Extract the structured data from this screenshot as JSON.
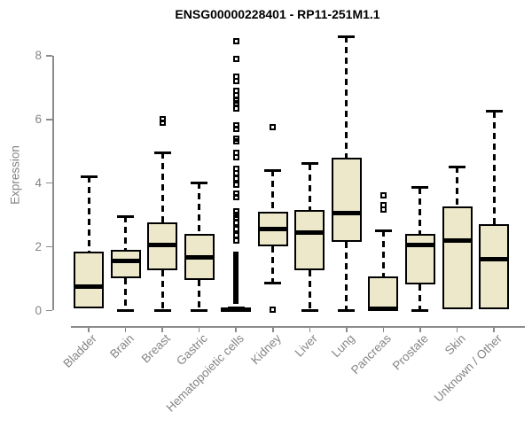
{
  "chart_data": {
    "type": "boxplot",
    "title": "ENSG00000228401 - RP11-251M1.1",
    "ylabel": "Expression",
    "ylim": [
      0,
      8.7
    ],
    "yticks": [
      0,
      2,
      4,
      6,
      8
    ],
    "grid": false,
    "legend": null,
    "categories": [
      "Bladder",
      "Brain",
      "Breast",
      "Gastric",
      "Hematopoietic cells",
      "Kidney",
      "Liver",
      "Lung",
      "Pancreas",
      "Prostate",
      "Skin",
      "Unknown / Other"
    ],
    "series": [
      {
        "category": "Bladder",
        "whisker_low": 0,
        "q1": 0.05,
        "median": 0.75,
        "q3": 1.85,
        "whisker_high": 4.2,
        "outliers": []
      },
      {
        "category": "Brain",
        "whisker_low": 0,
        "q1": 1.0,
        "median": 1.55,
        "q3": 1.9,
        "whisker_high": 2.95,
        "outliers": []
      },
      {
        "category": "Breast",
        "whisker_low": 0,
        "q1": 1.25,
        "median": 2.05,
        "q3": 2.75,
        "whisker_high": 4.95,
        "outliers": [
          5.9,
          6.0
        ]
      },
      {
        "category": "Gastric",
        "whisker_low": 0,
        "q1": 0.95,
        "median": 1.65,
        "q3": 2.4,
        "whisker_high": 4.0,
        "outliers": []
      },
      {
        "category": "Hematopoietic cells",
        "whisker_low": 0,
        "q1": 0,
        "median": 0.02,
        "q3": 0.05,
        "whisker_high": 0.08,
        "outliers": [
          8.45,
          7.9,
          7.35,
          7.2,
          6.9,
          6.75,
          6.6,
          6.5,
          6.35,
          5.8,
          5.7,
          5.4,
          5.3,
          4.95,
          4.8,
          4.45,
          4.3,
          4.15,
          3.95,
          3.65,
          3.55,
          3.1,
          3.0,
          2.9,
          2.75,
          2.55,
          2.35,
          2.2
        ],
        "outlier_band": [
          0.2,
          1.85
        ]
      },
      {
        "category": "Kidney",
        "whisker_low": 0.85,
        "q1": 2.0,
        "median": 2.55,
        "q3": 3.1,
        "whisker_high": 4.4,
        "outliers": [
          5.75,
          0.02
        ]
      },
      {
        "category": "Liver",
        "whisker_low": 0,
        "q1": 1.25,
        "median": 2.45,
        "q3": 3.15,
        "whisker_high": 4.6,
        "outliers": []
      },
      {
        "category": "Lung",
        "whisker_low": 0,
        "q1": 2.15,
        "median": 3.05,
        "q3": 4.8,
        "whisker_high": 8.6,
        "outliers": []
      },
      {
        "category": "Pancreas",
        "whisker_low": 0,
        "q1": 0,
        "median": 0.05,
        "q3": 1.05,
        "whisker_high": 2.5,
        "outliers": [
          3.6,
          3.3,
          3.15
        ]
      },
      {
        "category": "Prostate",
        "whisker_low": 0,
        "q1": 0.8,
        "median": 2.05,
        "q3": 2.4,
        "whisker_high": 3.85,
        "outliers": []
      },
      {
        "category": "Skin",
        "whisker_low": 0,
        "q1": 0.02,
        "median": 2.2,
        "q3": 3.25,
        "whisker_high": 4.5,
        "outliers": []
      },
      {
        "category": "Unknown / Other",
        "whisker_low": 0,
        "q1": 0.02,
        "median": 1.6,
        "q3": 2.7,
        "whisker_high": 6.25,
        "outliers": []
      }
    ]
  },
  "style": {
    "box_fill": "#EDE8CA",
    "box_border": "#000000",
    "whisker_color": "#000000",
    "axis_color": "#8B8B8B",
    "tick_label_color": "#858585",
    "title_color": "#000000",
    "background": "#FFFFFF"
  }
}
